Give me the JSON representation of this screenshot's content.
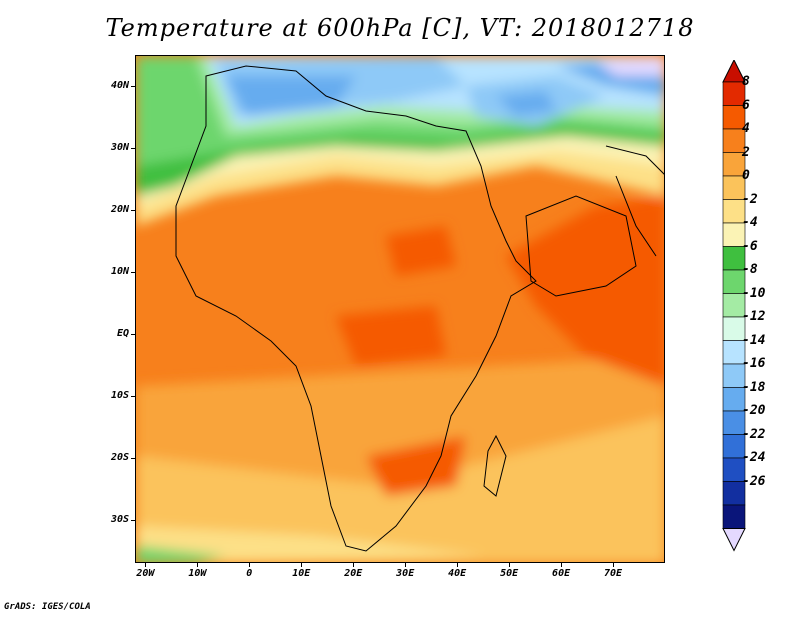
{
  "title": "Temperature at 600hPa [C], VT: 2018012718",
  "footer": "GrADS: IGES/COLA",
  "lat_labels": [
    "40N",
    "30N",
    "20N",
    "10N",
    "EQ",
    "10S",
    "20S",
    "30S"
  ],
  "lat_values": [
    40,
    30,
    20,
    10,
    0,
    -10,
    -20,
    -30
  ],
  "lon_labels": [
    "20W",
    "10W",
    "0",
    "10E",
    "20E",
    "30E",
    "40E",
    "50E",
    "60E",
    "70E"
  ],
  "lon_values": [
    -20,
    -10,
    0,
    10,
    20,
    30,
    40,
    50,
    60,
    70
  ],
  "extent": {
    "lon_min": -22,
    "lon_max": 80,
    "lat_min": -37,
    "lat_max": 45
  },
  "colorbar": {
    "labels": [
      "8",
      "6",
      "4",
      "2",
      "0",
      "-2",
      "-4",
      "-6",
      "-8",
      "-10",
      "-12",
      "-14",
      "-16",
      "-18",
      "-20",
      "-22",
      "-24",
      "-26"
    ],
    "colors": [
      "#e32a00",
      "#f55a00",
      "#f7801c",
      "#f9a43a",
      "#fbc35b",
      "#fde087",
      "#fbf3b5",
      "#3fbf3f",
      "#6dd66d",
      "#a4eba4",
      "#d9fbe8",
      "#b7e3ff",
      "#8ec9f7",
      "#66acef",
      "#4a8fe5",
      "#3170d8",
      "#1f4fc2",
      "#122fa0",
      "#0a157a"
    ],
    "top_arrow_color": "#c80e00",
    "bottom_arrow_color": "#e4d9ff"
  }
}
